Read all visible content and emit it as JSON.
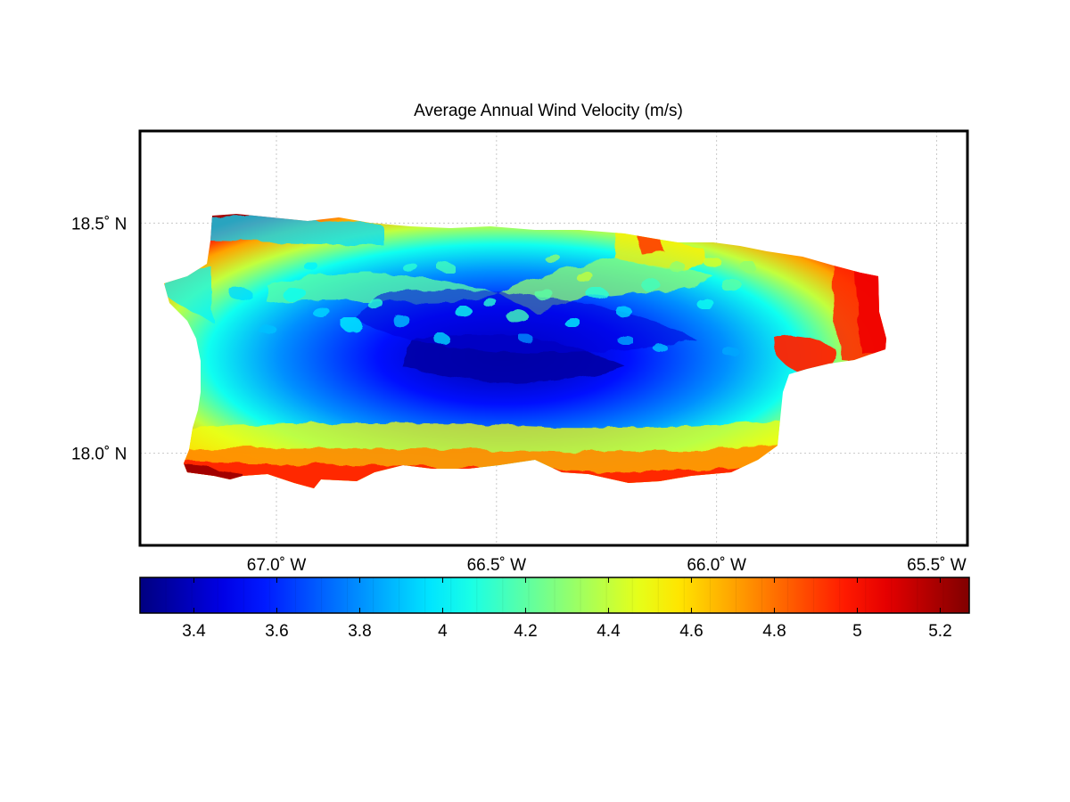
{
  "title": "Average Annual Wind Velocity (m/s)",
  "map": {
    "lat_labels": [
      {
        "lat": 18.5,
        "text": "18.5˚ N"
      },
      {
        "lat": 18.0,
        "text": "18.0˚ N"
      }
    ],
    "lon_labels": [
      {
        "lon": -67.0,
        "text": "67.0˚ W"
      },
      {
        "lon": -66.5,
        "text": "66.5˚ W"
      },
      {
        "lon": -66.0,
        "text": "66.0˚ W"
      },
      {
        "lon": -65.5,
        "text": "65.5˚ W"
      }
    ],
    "lon_range": [
      -67.31,
      -65.43
    ],
    "lat_range": [
      17.8,
      18.7
    ],
    "grid": "dotted",
    "region": "Puerto Rico",
    "colormap": "jet"
  },
  "colorbar": {
    "range": [
      3.27,
      5.27
    ],
    "ticks": [
      {
        "value": 3.4,
        "label": "3.4"
      },
      {
        "value": 3.6,
        "label": "3.6"
      },
      {
        "value": 3.8,
        "label": "3.8"
      },
      {
        "value": 4.0,
        "label": "4"
      },
      {
        "value": 4.2,
        "label": "4.2"
      },
      {
        "value": 4.4,
        "label": "4.4"
      },
      {
        "value": 4.6,
        "label": "4.6"
      },
      {
        "value": 4.8,
        "label": "4.8"
      },
      {
        "value": 5.0,
        "label": "5"
      },
      {
        "value": 5.2,
        "label": "5.2"
      }
    ],
    "orientation": "horizontal",
    "placement": "bottom"
  }
}
